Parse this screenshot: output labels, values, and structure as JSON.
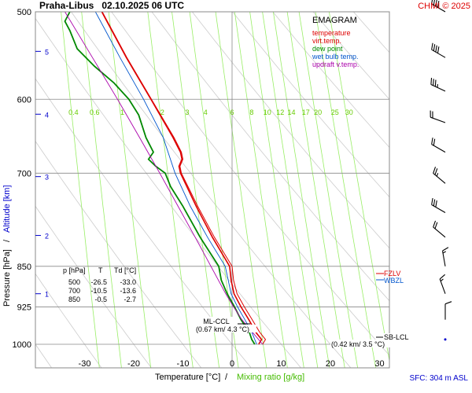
{
  "header": {
    "title": "Praha-Libus   02.10.2025 06 UTC",
    "copyright": "CHMI © 2025"
  },
  "footer": {
    "sfc": "SFC: 304 m ASL"
  },
  "chart_data": {
    "type": "line",
    "subtype": "emagram",
    "title": "EMAGRAM",
    "xlabel_temperature": "Temperature [°C]",
    "xlabel_separator": "/",
    "xlabel_mixing": "Mixing ratio [g/kg]",
    "ylabel_pressure": "Pressure [hPa]",
    "ylabel_separator": "/",
    "ylabel_altitude": "Altitude [km]",
    "xlim": [
      -40,
      35
    ],
    "ylim_hpa": [
      1030,
      500
    ],
    "x_ticks": [
      -30,
      -20,
      -10,
      0,
      10,
      20,
      30
    ],
    "pressure_ticks": [
      500,
      600,
      700,
      850,
      925,
      1000
    ],
    "altitude_ticks": [
      {
        "km": 1,
        "hpa": 900
      },
      {
        "km": 2,
        "hpa": 797
      },
      {
        "km": 3,
        "hpa": 705
      },
      {
        "km": 4,
        "hpa": 619
      },
      {
        "km": 5,
        "hpa": 543
      }
    ],
    "mixing_ratio_labels": [
      "0.4",
      "0.6",
      "1",
      "2",
      "3",
      "4",
      "6",
      "8",
      "10",
      "12",
      "14",
      "17",
      "20",
      "25",
      "30"
    ],
    "legend": [
      {
        "name": "temperature",
        "color": "#dd0000"
      },
      {
        "name": "virt.temp.",
        "color": "#dd0000"
      },
      {
        "name": "dew point",
        "color": "#008800"
      },
      {
        "name": "wet bulb temp.",
        "color": "#0055cc"
      },
      {
        "name": "updraft v.temp.",
        "color": "#aa00aa"
      }
    ],
    "legend_position": "top-right",
    "series": [
      {
        "name": "temperature",
        "color": "#dd0000",
        "points": [
          [
            1000,
            5.4
          ],
          [
            990,
            6.0
          ],
          [
            975,
            4.8
          ],
          [
            950,
            3.4
          ],
          [
            925,
            1.8
          ],
          [
            900,
            0.4
          ],
          [
            875,
            -0.2
          ],
          [
            850,
            -0.5
          ],
          [
            800,
            -4.0
          ],
          [
            750,
            -7.3
          ],
          [
            700,
            -10.5
          ],
          [
            690,
            -10.8
          ],
          [
            680,
            -10.2
          ],
          [
            670,
            -10.5
          ],
          [
            650,
            -12.0
          ],
          [
            600,
            -16.5
          ],
          [
            550,
            -21.5
          ],
          [
            500,
            -26.5
          ]
        ]
      },
      {
        "name": "virt.temp.",
        "color": "#dd0000",
        "points": [
          [
            1000,
            6.2
          ],
          [
            990,
            6.8
          ],
          [
            975,
            5.6
          ],
          [
            950,
            4.1
          ],
          [
            925,
            2.5
          ],
          [
            900,
            1.0
          ],
          [
            875,
            0.3
          ],
          [
            850,
            0.0
          ],
          [
            800,
            -3.6
          ],
          [
            750,
            -7.0
          ],
          [
            700,
            -10.3
          ],
          [
            690,
            -10.6
          ],
          [
            680,
            -10.0
          ],
          [
            670,
            -10.3
          ],
          [
            650,
            -11.8
          ],
          [
            600,
            -16.4
          ],
          [
            550,
            -21.4
          ],
          [
            500,
            -26.4
          ]
        ]
      },
      {
        "name": "dew point",
        "color": "#008800",
        "points": [
          [
            1000,
            4.6
          ],
          [
            990,
            4.0
          ],
          [
            975,
            3.5
          ],
          [
            950,
            1.8
          ],
          [
            925,
            0.5
          ],
          [
            900,
            -1.0
          ],
          [
            875,
            -2.2
          ],
          [
            850,
            -2.7
          ],
          [
            800,
            -6.5
          ],
          [
            750,
            -10.0
          ],
          [
            720,
            -12.5
          ],
          [
            700,
            -13.6
          ],
          [
            690,
            -15.5
          ],
          [
            680,
            -17.0
          ],
          [
            670,
            -16.0
          ],
          [
            650,
            -17.5
          ],
          [
            620,
            -19.0
          ],
          [
            600,
            -21.0
          ],
          [
            580,
            -24.0
          ],
          [
            560,
            -28.0
          ],
          [
            540,
            -31.5
          ],
          [
            520,
            -33.0
          ],
          [
            510,
            -34.0
          ],
          [
            500,
            -33.0
          ]
        ]
      },
      {
        "name": "wet bulb temp.",
        "color": "#0055cc",
        "points": [
          [
            1000,
            5.0
          ],
          [
            975,
            4.0
          ],
          [
            950,
            2.6
          ],
          [
            925,
            1.1
          ],
          [
            900,
            -0.2
          ],
          [
            850,
            -1.4
          ],
          [
            800,
            -5.0
          ],
          [
            750,
            -8.5
          ],
          [
            700,
            -11.6
          ],
          [
            650,
            -14.0
          ],
          [
            600,
            -18.0
          ],
          [
            550,
            -22.8
          ],
          [
            500,
            -27.8
          ]
        ]
      },
      {
        "name": "updraft v.temp.",
        "color": "#aa00aa",
        "points": [
          [
            1000,
            6.2
          ],
          [
            950,
            2.0
          ],
          [
            925,
            0.3
          ],
          [
            900,
            -1.3
          ],
          [
            850,
            -4.3
          ],
          [
            800,
            -7.5
          ],
          [
            750,
            -11.0
          ],
          [
            700,
            -14.7
          ],
          [
            650,
            -18.8
          ],
          [
            600,
            -23.3
          ],
          [
            550,
            -28.4
          ],
          [
            500,
            -34.0
          ]
        ]
      }
    ],
    "table": {
      "headers": [
        "p [hPa]",
        "T",
        "Td [°C]"
      ],
      "rows": [
        [
          "500",
          "-26.5",
          "-33.0"
        ],
        [
          "700",
          "-10.5",
          "-13.6"
        ],
        [
          "850",
          "-0.5",
          "-2.7"
        ]
      ]
    },
    "annotations": [
      {
        "label": "ML-CCL",
        "detail": "(0.67 km/ 4.3 °C)"
      },
      {
        "label": "SB-LCL",
        "detail": "(0.42 km/ 3.5 °C)"
      },
      {
        "label": "FZLV",
        "color": "#dd0000",
        "hpa": 848
      },
      {
        "label": "WBZL",
        "color": "#0055cc",
        "hpa": 838
      }
    ],
    "wind_barbs": [
      {
        "hpa": 500,
        "dir_deg": 300,
        "speed_kt": 40
      },
      {
        "hpa": 550,
        "dir_deg": 300,
        "speed_kt": 40
      },
      {
        "hpa": 590,
        "dir_deg": 295,
        "speed_kt": 35
      },
      {
        "hpa": 630,
        "dir_deg": 290,
        "speed_kt": 20
      },
      {
        "hpa": 670,
        "dir_deg": 300,
        "speed_kt": 20
      },
      {
        "hpa": 715,
        "dir_deg": 310,
        "speed_kt": 25
      },
      {
        "hpa": 760,
        "dir_deg": 300,
        "speed_kt": 30
      },
      {
        "hpa": 800,
        "dir_deg": 310,
        "speed_kt": 20
      },
      {
        "hpa": 850,
        "dir_deg": 350,
        "speed_kt": 15
      },
      {
        "hpa": 900,
        "dir_deg": 340,
        "speed_kt": 15
      },
      {
        "hpa": 950,
        "dir_deg": 0,
        "speed_kt": 10
      },
      {
        "hpa": 990,
        "dir_deg": 0,
        "speed_kt": 0
      }
    ],
    "grid": true
  }
}
